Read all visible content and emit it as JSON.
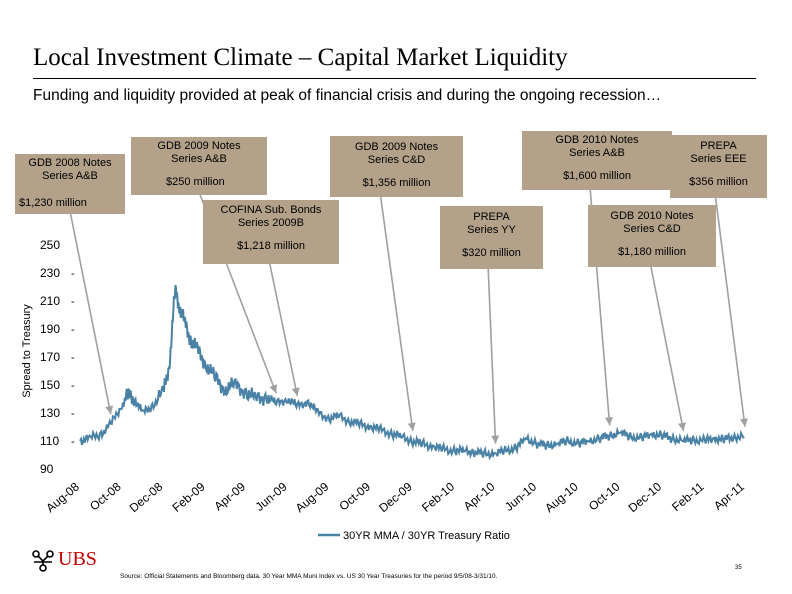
{
  "title": "Local Investment Climate – Capital Market Liquidity",
  "subtitle": "Funding and liquidity provided at peak of financial crisis and during the ongoing recession…",
  "callouts": [
    {
      "name": "GDB 2008 Notes Series A&B",
      "amount": "$1,230 million",
      "date": "2008-09-15"
    },
    {
      "name": "GDB 2009 Notes Series A&B",
      "amount": "$250 million",
      "date": "2009-05-15"
    },
    {
      "name": "COFINA Sub. Bonds Series 2009B",
      "amount": "$1,218 million",
      "date": "2009-06-15"
    },
    {
      "name": "GDB 2009 Notes Series C&D",
      "amount": "$1,356 million",
      "date": "2009-12-01"
    },
    {
      "name": "PREPA Series YY",
      "amount": "$320 million",
      "date": "2010-04-01"
    },
    {
      "name": "GDB 2010 Notes Series A&B",
      "amount": "$1,600 million",
      "date": "2010-09-15"
    },
    {
      "name": "GDB 2010 Notes Series C&D",
      "amount": "$1,180 million",
      "date": "2011-01-01"
    },
    {
      "name": "PREPA Series EEE",
      "amount": "$356 million",
      "date": "2011-04-01"
    }
  ],
  "chart_data": {
    "type": "line",
    "title": "",
    "xlabel": "",
    "ylabel": "Spread to Treasury",
    "ylim": [
      90,
      250
    ],
    "yticks": [
      90,
      110,
      130,
      150,
      170,
      190,
      210,
      230,
      250
    ],
    "xticks": [
      "Aug-08",
      "Oct-08",
      "Dec-08",
      "Feb-09",
      "Apr-09",
      "Jun-09",
      "Aug-09",
      "Oct-09",
      "Dec-09",
      "Feb-10",
      "Apr-10",
      "Jun-10",
      "Aug-10",
      "Oct-10",
      "Dec-10",
      "Feb-11",
      "Apr-11"
    ],
    "grid": false,
    "legend": "bottom-center",
    "series": [
      {
        "name": "30YR MMA / 30YR Treasury Ratio",
        "color": "#4a82a6",
        "points": [
          [
            "2008-08-01",
            110
          ],
          [
            "2008-08-15",
            112
          ],
          [
            "2008-09-01",
            115
          ],
          [
            "2008-09-15",
            122
          ],
          [
            "2008-10-01",
            135
          ],
          [
            "2008-10-10",
            143
          ],
          [
            "2008-10-20",
            140
          ],
          [
            "2008-11-01",
            130
          ],
          [
            "2008-11-15",
            135
          ],
          [
            "2008-12-01",
            145
          ],
          [
            "2008-12-10",
            165
          ],
          [
            "2008-12-18",
            218
          ],
          [
            "2008-12-25",
            205
          ],
          [
            "2009-01-01",
            195
          ],
          [
            "2009-01-10",
            182
          ],
          [
            "2009-01-20",
            175
          ],
          [
            "2009-02-01",
            165
          ],
          [
            "2009-02-15",
            155
          ],
          [
            "2009-03-01",
            147
          ],
          [
            "2009-03-15",
            150
          ],
          [
            "2009-04-01",
            145
          ],
          [
            "2009-04-15",
            140
          ],
          [
            "2009-05-01",
            142
          ],
          [
            "2009-05-15",
            137
          ],
          [
            "2009-06-01",
            140
          ],
          [
            "2009-06-15",
            135
          ],
          [
            "2009-07-01",
            138
          ],
          [
            "2009-07-15",
            130
          ],
          [
            "2009-08-01",
            126
          ],
          [
            "2009-08-15",
            128
          ],
          [
            "2009-09-01",
            124
          ],
          [
            "2009-09-15",
            122
          ],
          [
            "2009-10-01",
            120
          ],
          [
            "2009-10-15",
            118
          ],
          [
            "2009-11-01",
            115
          ],
          [
            "2009-11-15",
            113
          ],
          [
            "2009-12-01",
            110
          ],
          [
            "2009-12-15",
            108
          ],
          [
            "2010-01-01",
            106
          ],
          [
            "2010-01-15",
            104
          ],
          [
            "2010-02-01",
            103
          ],
          [
            "2010-02-15",
            103
          ],
          [
            "2010-03-01",
            102
          ],
          [
            "2010-03-15",
            101
          ],
          [
            "2010-04-01",
            101
          ],
          [
            "2010-04-15",
            103
          ],
          [
            "2010-05-01",
            105
          ],
          [
            "2010-05-15",
            112
          ],
          [
            "2010-06-01",
            108
          ],
          [
            "2010-06-15",
            107
          ],
          [
            "2010-07-01",
            108
          ],
          [
            "2010-07-15",
            110
          ],
          [
            "2010-08-01",
            108
          ],
          [
            "2010-08-15",
            110
          ],
          [
            "2010-09-01",
            112
          ],
          [
            "2010-09-15",
            114
          ],
          [
            "2010-10-01",
            116
          ],
          [
            "2010-10-15",
            113
          ],
          [
            "2010-11-01",
            112
          ],
          [
            "2010-11-15",
            115
          ],
          [
            "2010-12-01",
            114
          ],
          [
            "2010-12-15",
            112
          ],
          [
            "2011-01-01",
            110
          ],
          [
            "2011-01-15",
            111
          ],
          [
            "2011-02-01",
            110
          ],
          [
            "2011-02-15",
            112
          ],
          [
            "2011-03-01",
            111
          ],
          [
            "2011-03-15",
            113
          ],
          [
            "2011-03-31",
            113
          ]
        ]
      }
    ]
  },
  "footer": {
    "logo_text": "UBS",
    "source": "Source: Official Statements and Bloomberg data. 30 Year MMA Muni Index vs. US 30 Year Treasuries for the period 9/5/08-3/31/10.",
    "page": "35"
  }
}
